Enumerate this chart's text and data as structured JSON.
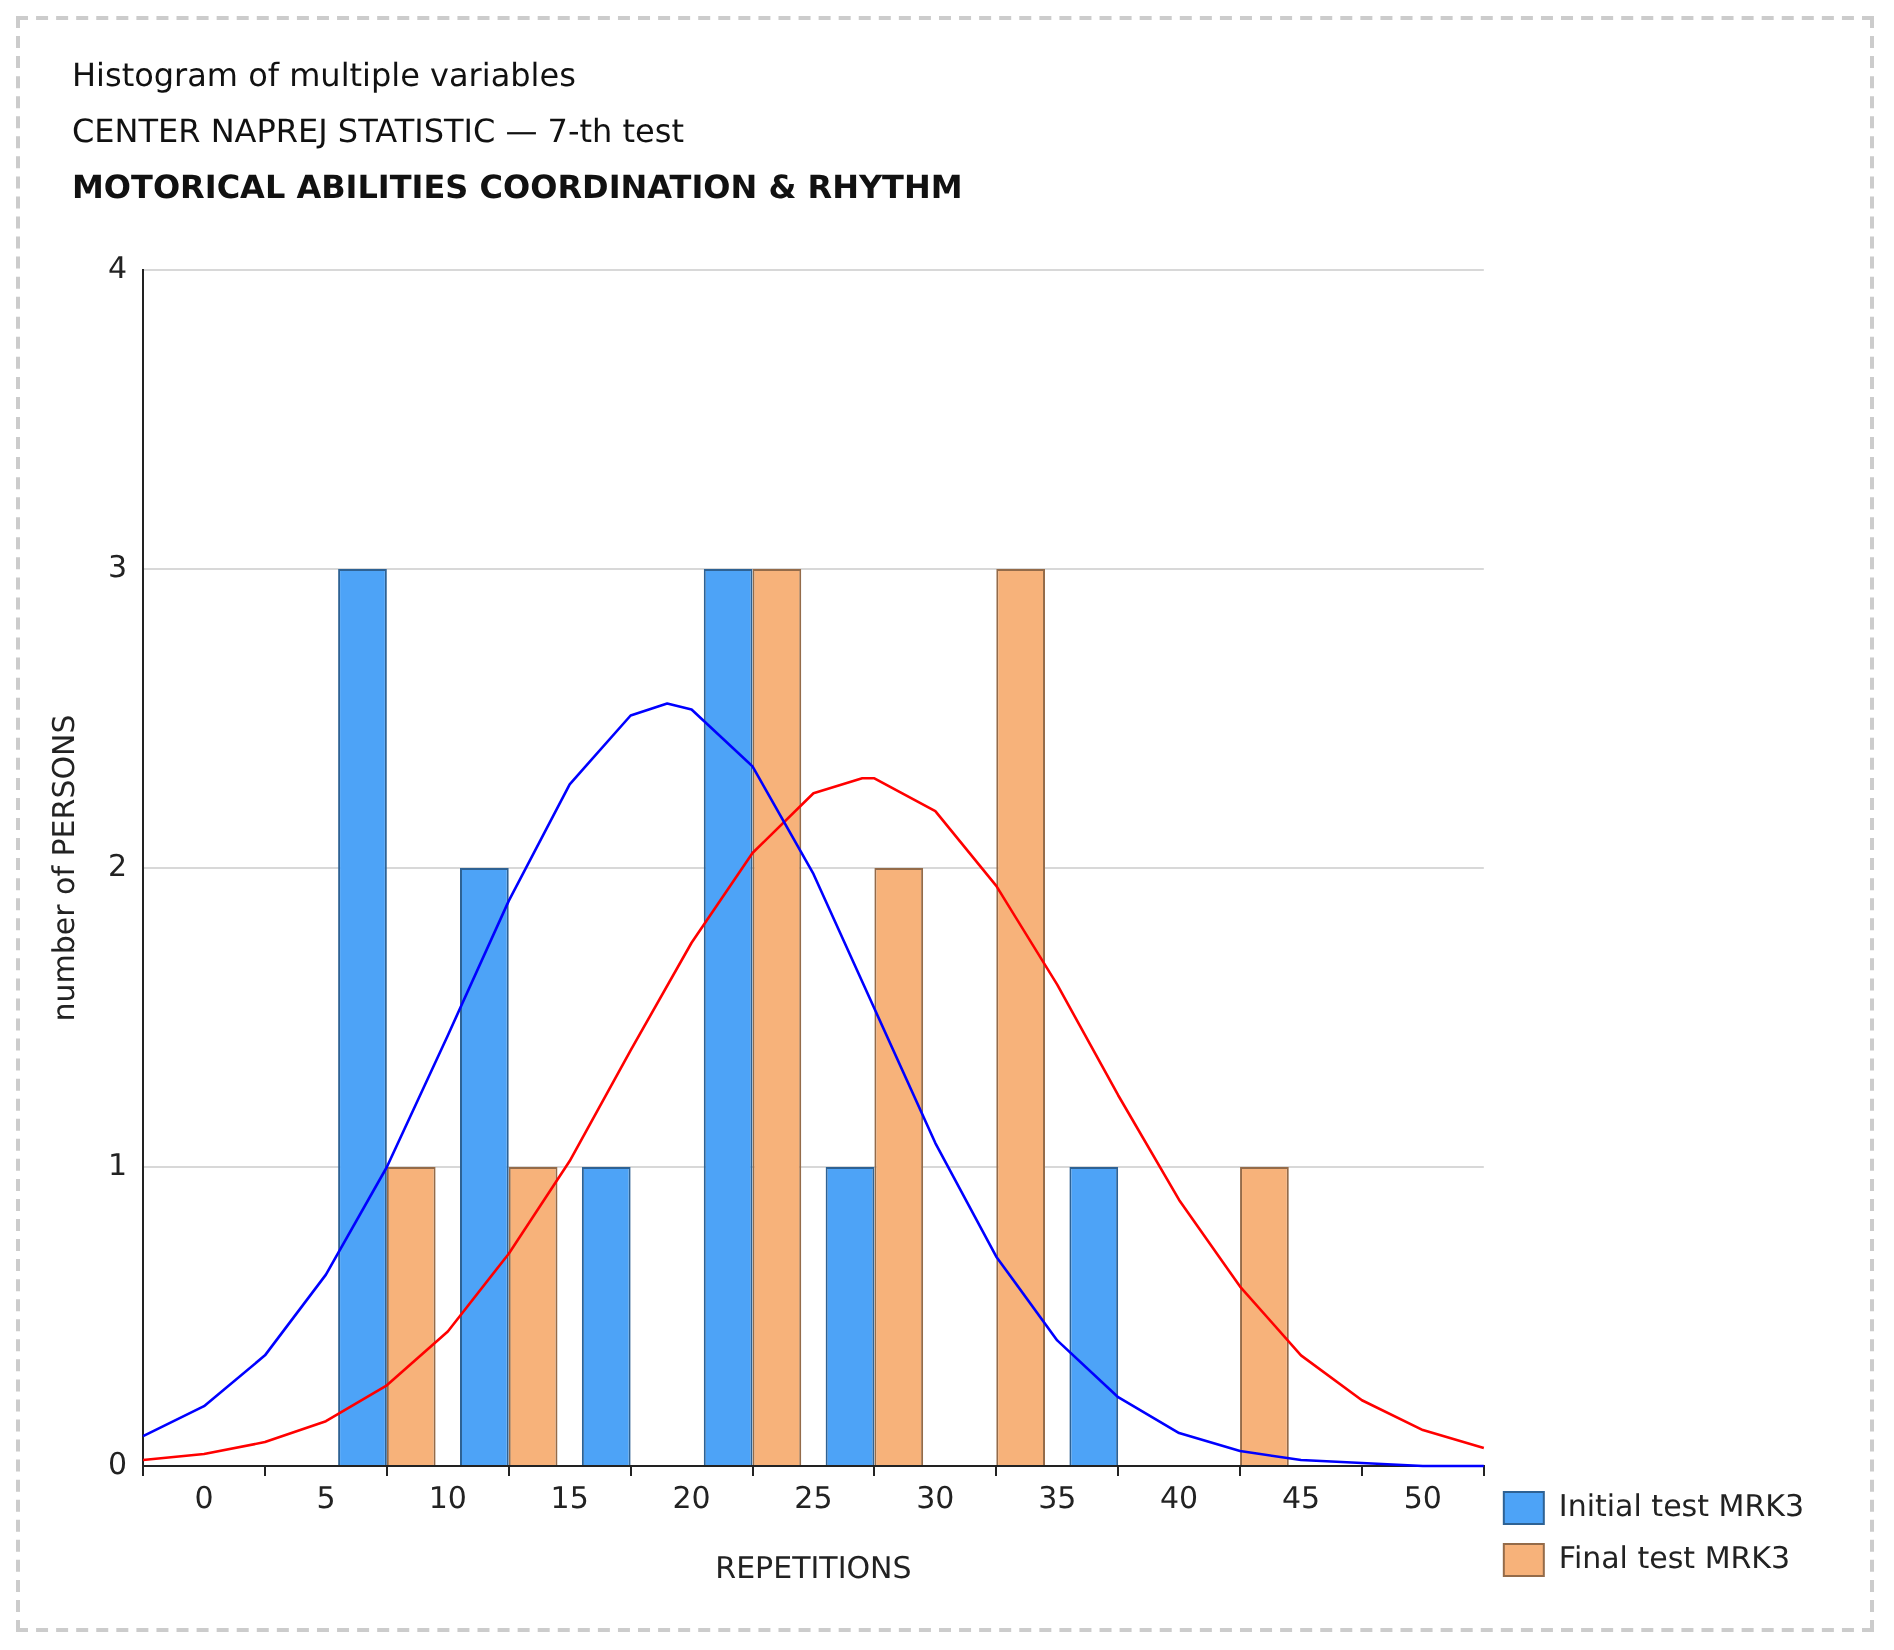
{
  "chart_data": {
    "type": "histogram",
    "title": "Histogram of multiple variables",
    "subtitle": "CENTER NAPREJ STATISTIC — 7-th test\nMOTORICAL ABILITIES COORDINATION & RHYTHM",
    "xlabel": "REPETITIONS",
    "ylabel": "number of PERSONS",
    "bins": [
      5,
      10,
      15,
      20,
      25,
      30,
      35,
      40,
      45
    ],
    "series": [
      {
        "name": "Initial test MRK3",
        "color": "#4da3f7",
        "values": [
          3,
          2,
          1,
          3,
          1,
          0,
          1,
          0
        ]
      },
      {
        "name": "Final test MRK3",
        "color": "#f7b27a",
        "values": [
          1,
          1,
          0,
          3,
          2,
          3,
          0,
          1
        ]
      },
      {
        "type": "line",
        "color": "#0000ff",
        "x": [
          -2.5,
          0,
          2.5,
          5,
          7.5,
          10,
          12.5,
          15,
          17.5,
          19,
          20,
          22.5,
          25,
          27.5,
          30,
          32.5,
          35,
          37.5,
          40,
          42.5,
          45,
          47.5,
          50,
          52.5
        ],
        "values": [
          0.1,
          0.2,
          0.37,
          0.64,
          1.0,
          1.44,
          1.89,
          2.28,
          2.51,
          2.55,
          2.53,
          2.34,
          1.98,
          1.53,
          1.08,
          0.7,
          0.42,
          0.23,
          0.11,
          0.05,
          0.02,
          0.01,
          0.0,
          0.0
        ]
      },
      {
        "type": "line",
        "color": "#ff0000",
        "x": [
          -2.5,
          0,
          2.5,
          5,
          7.5,
          10,
          12.5,
          15,
          17.5,
          20,
          22.5,
          25,
          27,
          27.5,
          30,
          32.5,
          35,
          37.5,
          40,
          42.5,
          45,
          47.5,
          50,
          52.5
        ],
        "values": [
          0.02,
          0.04,
          0.08,
          0.15,
          0.27,
          0.45,
          0.71,
          1.02,
          1.39,
          1.75,
          2.05,
          2.25,
          2.3,
          2.3,
          2.19,
          1.94,
          1.61,
          1.24,
          0.89,
          0.6,
          0.37,
          0.22,
          0.12,
          0.06
        ]
      }
    ],
    "xlim": [
      -2.5,
      52.5
    ],
    "xticks": [
      0,
      5,
      10,
      15,
      20,
      25,
      30,
      35,
      40,
      45,
      50
    ],
    "ylim": [
      0,
      4
    ],
    "yticks": [
      0,
      1,
      2,
      3,
      4
    ],
    "grid": "y",
    "legend": "bottom right",
    "marker": "none"
  }
}
